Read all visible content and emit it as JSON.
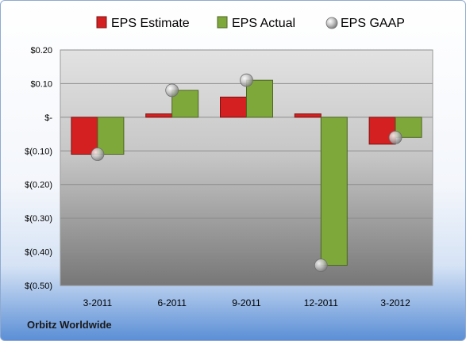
{
  "chart_data": {
    "type": "bar",
    "categories": [
      "3-2011",
      "6-2011",
      "9-2011",
      "12-2011",
      "3-2012"
    ],
    "series": [
      {
        "name": "EPS Estimate",
        "kind": "bar",
        "color": "#d42020",
        "values": [
          -0.11,
          0.01,
          0.06,
          0.01,
          -0.08
        ]
      },
      {
        "name": "EPS Actual",
        "kind": "bar",
        "color": "#7fa83a",
        "values": [
          -0.11,
          0.08,
          0.11,
          -0.44,
          -0.06
        ]
      },
      {
        "name": "EPS GAAP",
        "kind": "marker",
        "color": "#b8b8b8",
        "values": [
          -0.11,
          0.08,
          0.11,
          -0.44,
          -0.06
        ]
      }
    ],
    "yticks": [
      0.2,
      0.1,
      0,
      -0.1,
      -0.2,
      -0.3,
      -0.4,
      -0.5
    ],
    "ytick_labels": [
      "$0.20",
      "$0.10",
      "$-",
      "$(0.10)",
      "$(0.20)",
      "$(0.30)",
      "$(0.40)",
      "$(0.50)"
    ],
    "ylim": [
      -0.5,
      0.2
    ],
    "grid": true,
    "legend_position": "top"
  },
  "footer": {
    "company": "Orbitz Worldwide"
  }
}
